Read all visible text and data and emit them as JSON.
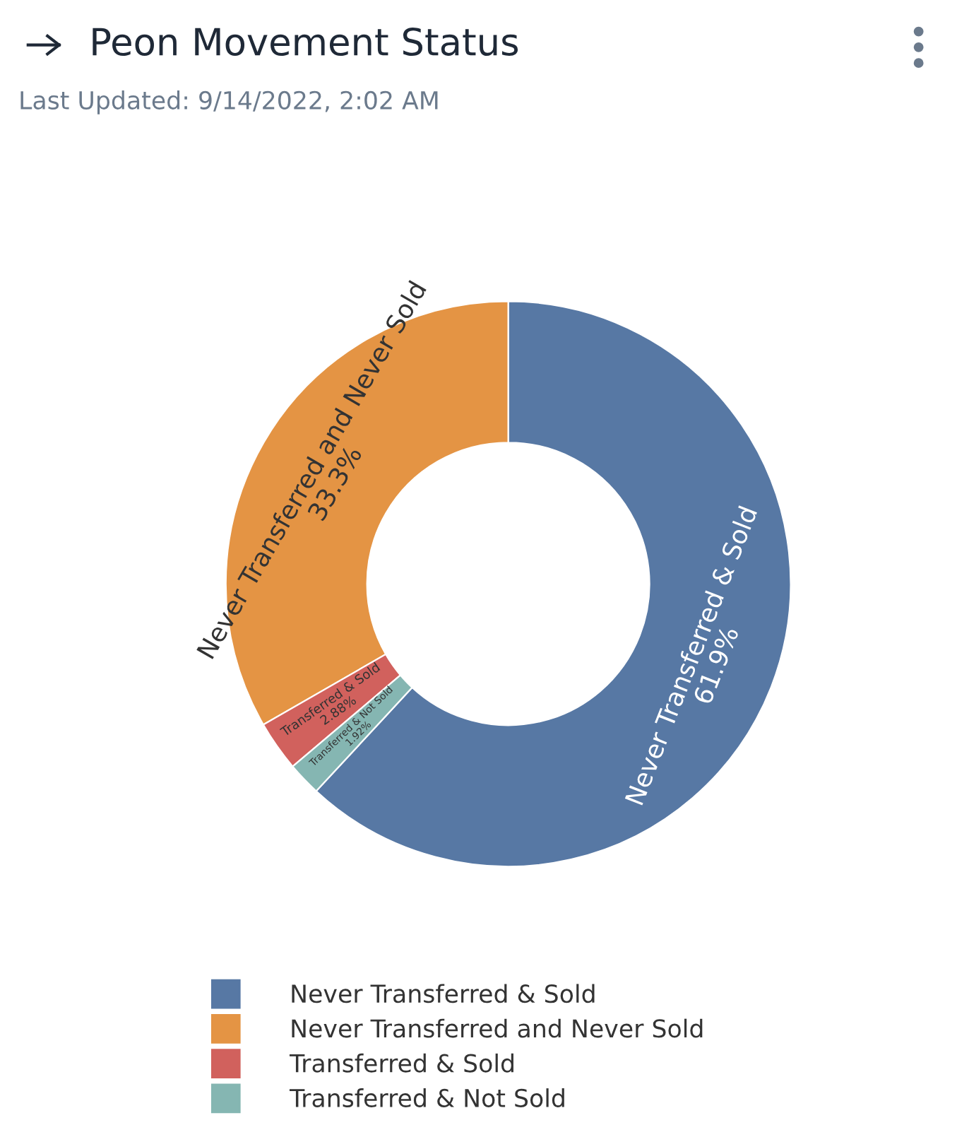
{
  "chart_data": {
    "type": "donut",
    "title": "Peon Movement Status",
    "subtitle": "Last Updated: 9/14/2022, 2:02 AM",
    "categories": [
      "Never Transferred & Sold",
      "Never Transferred and Never Sold",
      "Transferred & Sold",
      "Transferred & Not Sold"
    ],
    "values": [
      61.9,
      33.3,
      2.88,
      1.92
    ],
    "value_labels": [
      "61.9%",
      "33.3%",
      "2.88%",
      "1.92%"
    ],
    "colors": [
      "#5778a4",
      "#e49444",
      "#d1615d",
      "#85b6b2"
    ],
    "legend": "bottom"
  }
}
